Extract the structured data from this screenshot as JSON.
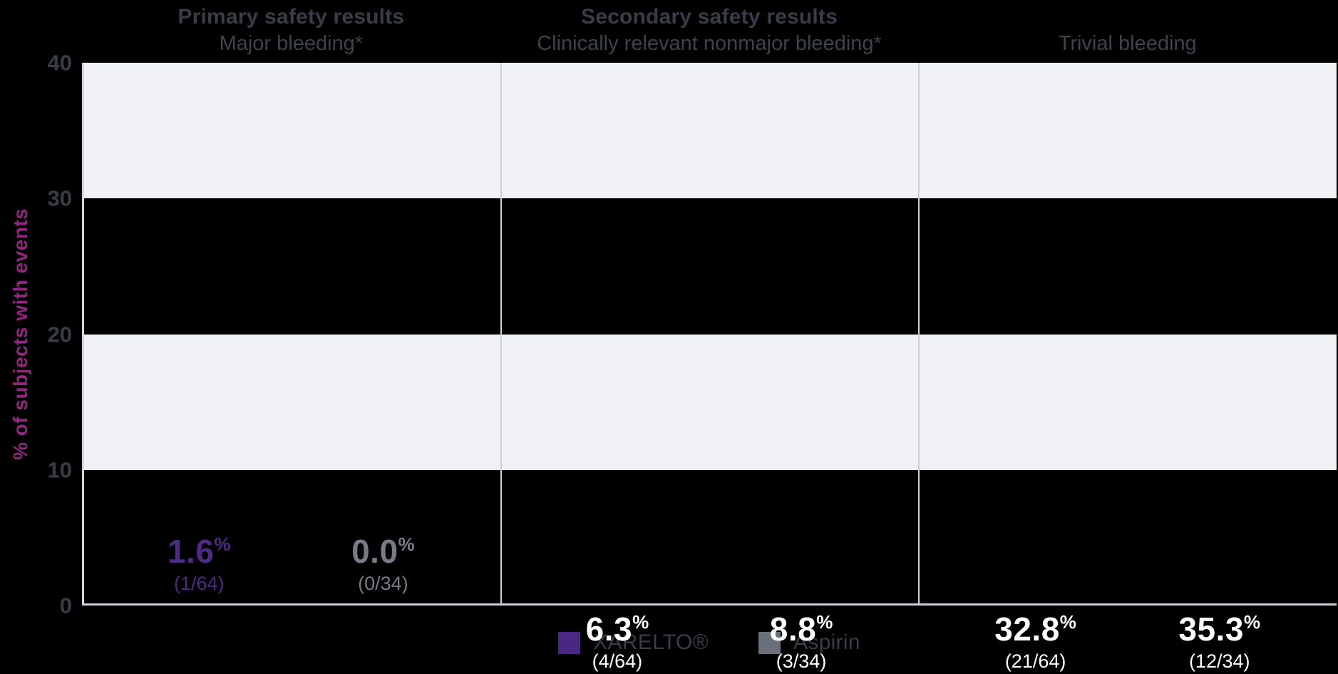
{
  "colors": {
    "background": "#000000",
    "xarelto_purple": "#482883",
    "aspirin_gray": "#697079",
    "purple_text": "#4D2A86",
    "gray_text": "#757C86",
    "band_light": "#EFF1F4",
    "axis_text": "#373E48",
    "magenta_axis_title": "#93267F",
    "line": "#CDD2D8",
    "inside_label": "#FFFFFF"
  },
  "chart_data": {
    "type": "bar",
    "title": "",
    "ylabel": "% of subjects with events",
    "xlabel": "",
    "ylim": [
      0,
      40
    ],
    "yticks": [
      "40",
      "30",
      "20",
      "10",
      "0"
    ],
    "grid": "alternating horizontal bands (light #EFF1F4 / transparent) every 10 units",
    "legend_position": "bottom-center",
    "series": [
      "XARELTO®",
      "Aspirin"
    ],
    "groups": [
      {
        "title": "Primary safety results",
        "subtitle": "Major bleeding*",
        "bars": [
          {
            "series": "XARELTO®",
            "value": 1.6,
            "pct": "1.6",
            "fraction": "(1/64)",
            "label_position": "above"
          },
          {
            "series": "Aspirin",
            "value": 0.0,
            "pct": "0.0",
            "fraction": "(0/34)",
            "label_position": "above"
          }
        ]
      },
      {
        "title": "Secondary safety results",
        "subtitle": "Clinically relevant nonmajor bleeding*",
        "bars": [
          {
            "series": "XARELTO®",
            "value": 6.3,
            "pct": "6.3",
            "fraction": "(4/64)",
            "label_position": "inside"
          },
          {
            "series": "Aspirin",
            "value": 8.8,
            "pct": "8.8",
            "fraction": "(3/34)",
            "label_position": "inside"
          }
        ]
      },
      {
        "title": "",
        "subtitle": "Trivial bleeding",
        "bars": [
          {
            "series": "XARELTO®",
            "value": 32.8,
            "pct": "32.8",
            "fraction": "(21/64)",
            "label_position": "inside"
          },
          {
            "series": "Aspirin",
            "value": 35.3,
            "pct": "35.3",
            "fraction": "(12/34)",
            "label_position": "inside"
          }
        ]
      }
    ],
    "legend": [
      {
        "label": "XARELTO®",
        "color": "#482883"
      },
      {
        "label": "Aspirin",
        "color": "#697079"
      }
    ],
    "percent_sign": "%"
  }
}
